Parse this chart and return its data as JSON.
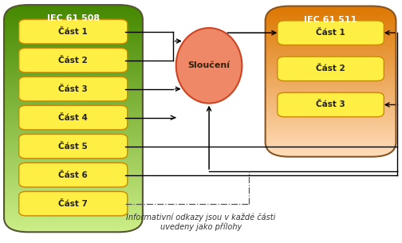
{
  "iec508_label": "IEC 61 508",
  "iec511_label": "IEC 61 511",
  "slouceni_label": "Sloučení",
  "cast508_labels": [
    "Část 1",
    "Část 2",
    "Část 3",
    "Část 4",
    "Část 5",
    "Část 6",
    "Část 7"
  ],
  "cast511_labels": [
    "Část 1",
    "Část 2",
    "Část 3"
  ],
  "informative_label": "Informativní odkazy jsou v každé části\nuvedeny jako přílohy",
  "bg_color": "#ffffff",
  "iec508_grad_top": "#448800",
  "iec508_grad_bot": "#ccee88",
  "iec511_grad_top": "#dd7700",
  "iec511_grad_bot": "#ffddbb",
  "box_fill": "#ffee44",
  "box_edge": "#cc8800",
  "ellipse_fill": "#ee8866",
  "ellipse_edge": "#cc4422",
  "arrow_color": "#000000",
  "dashed_color": "#555555",
  "font_size_title": 8,
  "font_size_box": 7.5,
  "font_size_info": 7,
  "fig_w": 5.04,
  "fig_h": 3.05,
  "dpi": 100
}
